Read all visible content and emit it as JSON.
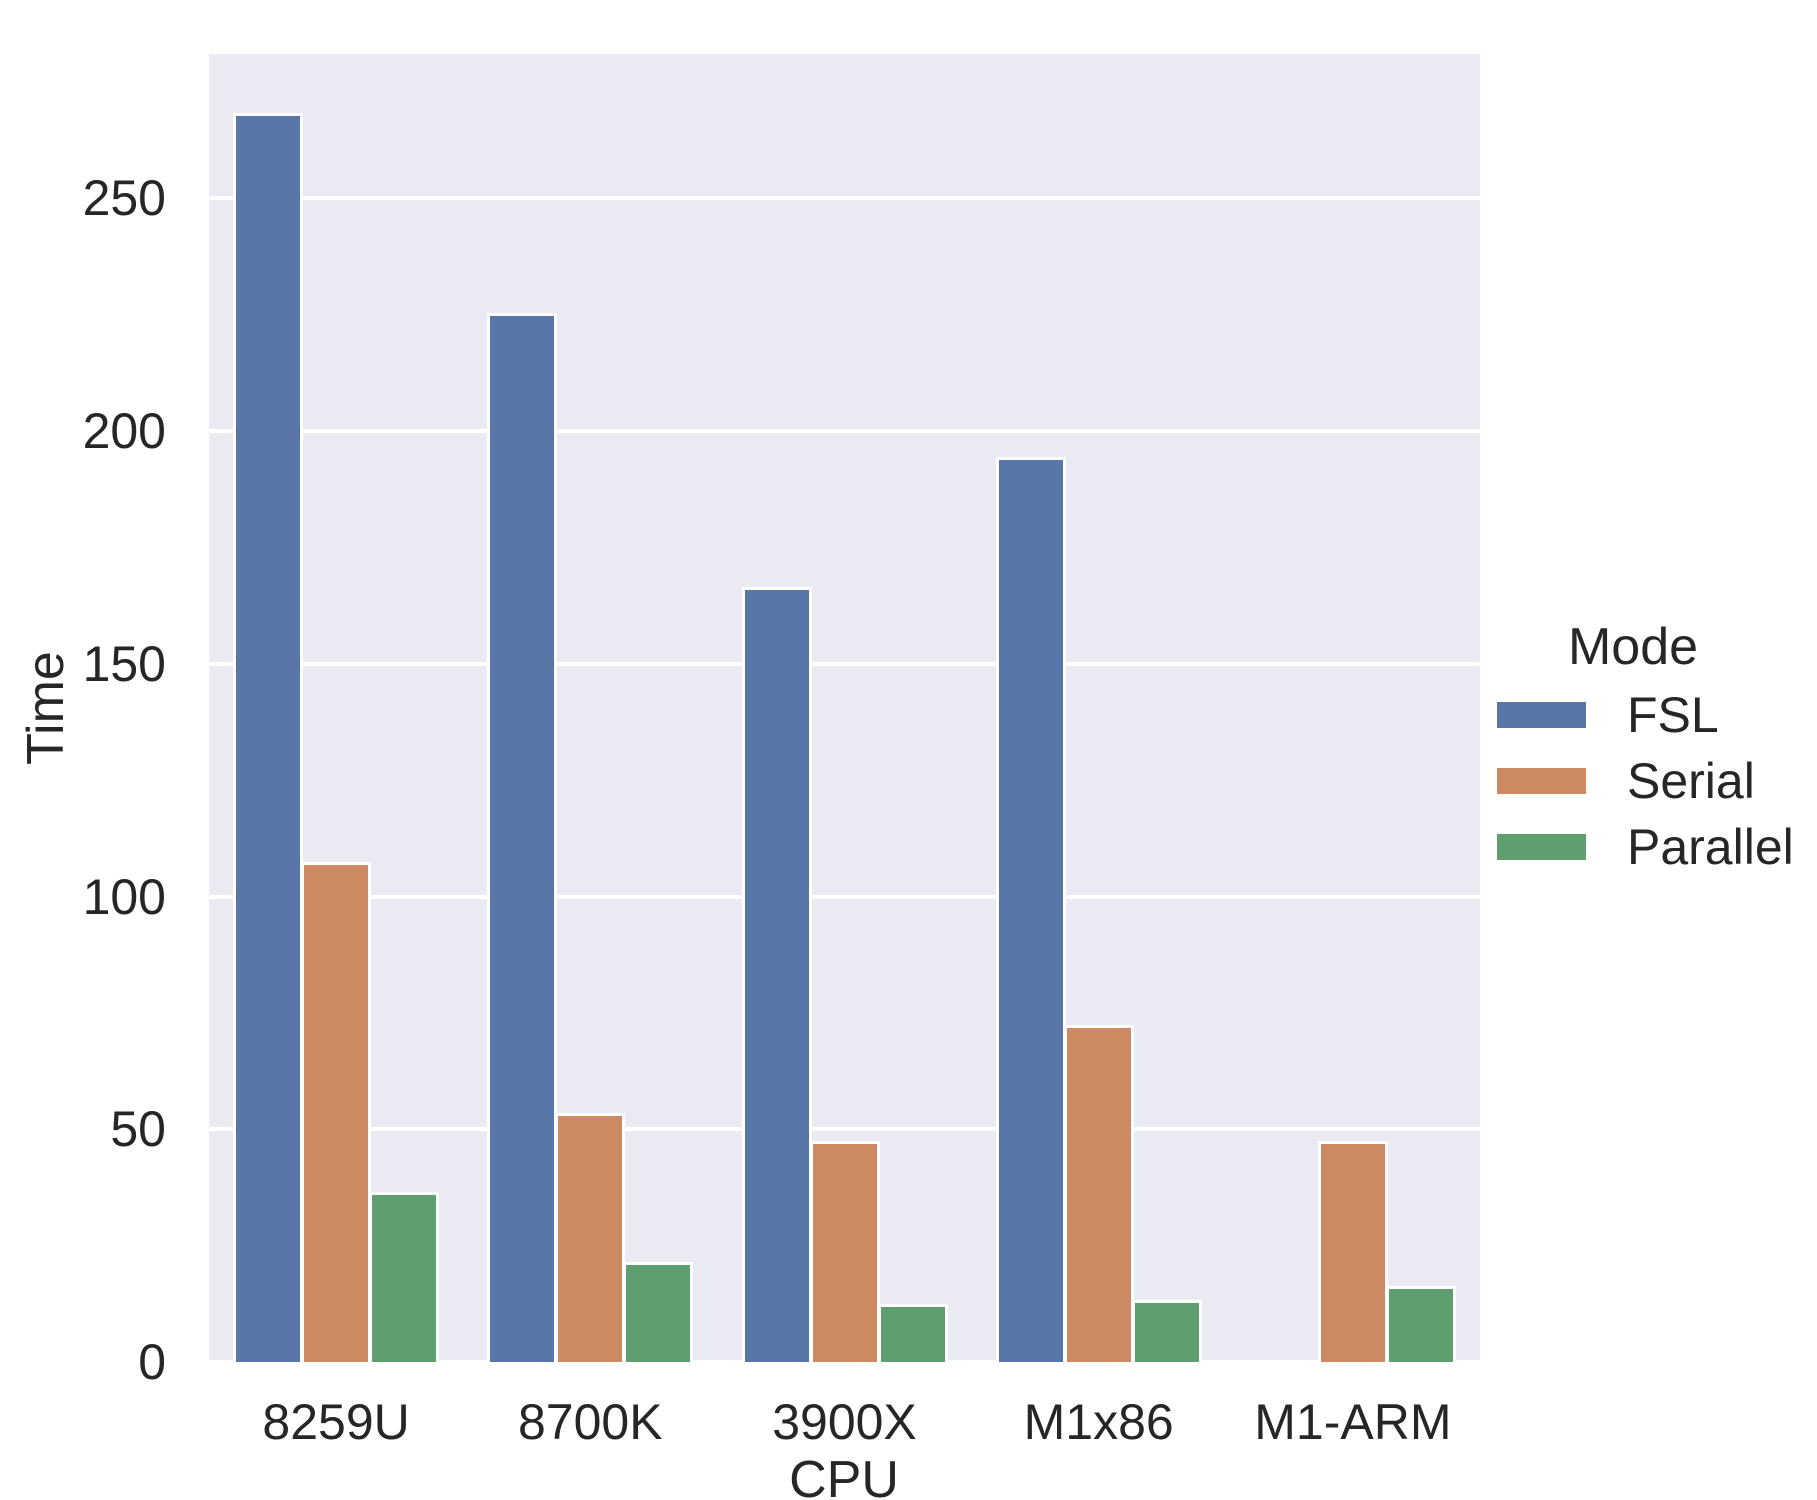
{
  "figure": {
    "background_color": "#ffffff",
    "axes_background_color": "#eaeaf2",
    "grid_color": "#ffffff",
    "text_color": "#262626"
  },
  "chart_data": {
    "type": "bar",
    "title": "",
    "xlabel": "CPU",
    "ylabel": "Time",
    "legend_title": "Mode",
    "legend_position": "center right, outside axes",
    "grid": true,
    "categories": [
      "8259U",
      "8700K",
      "3900X",
      "M1x86",
      "M1-ARM"
    ],
    "series": [
      {
        "name": "FSL",
        "color": "#5876a7",
        "values": [
          268,
          225,
          166,
          194,
          null
        ]
      },
      {
        "name": "Serial",
        "color": "#cd8962",
        "values": [
          107,
          53,
          47,
          72,
          47
        ]
      },
      {
        "name": "Parallel",
        "color": "#5f9e6e",
        "values": [
          36,
          21,
          12,
          13,
          16
        ]
      }
    ],
    "yticks": [
      0,
      50,
      100,
      150,
      200,
      250
    ],
    "ylim": [
      0,
      281
    ],
    "xlim_slots": 5
  }
}
